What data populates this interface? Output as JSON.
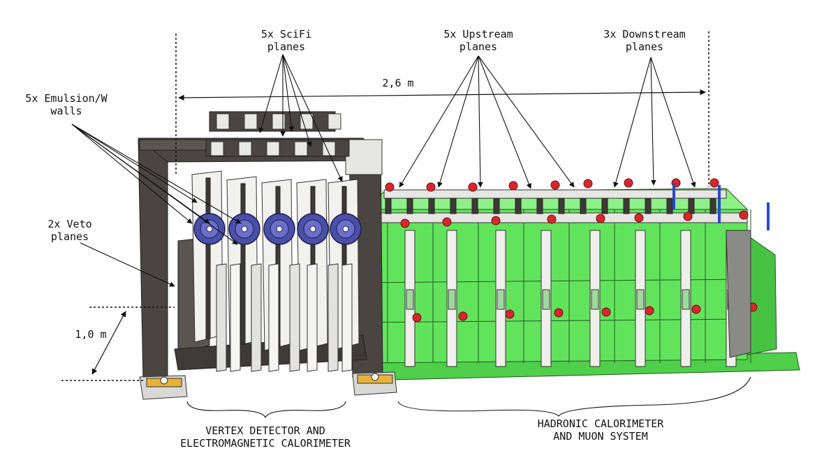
{
  "labels": {
    "scifi": [
      "5x SciFi",
      "planes"
    ],
    "upstream": [
      "5x Upstream",
      "planes"
    ],
    "downstream": [
      "3x Downstream",
      "planes"
    ],
    "emulsion": [
      "5x Emulsion/W",
      "walls"
    ],
    "veto": [
      "2x Veto",
      "planes"
    ],
    "vertex": [
      "VERTEX DETECTOR AND",
      "ELECTROMAGNETIC CALORIMETER"
    ],
    "hadronic": [
      "HADRONIC CALORIMETER",
      "AND MUON SYSTEM"
    ]
  },
  "dimensions": {
    "length": "2,6 m",
    "height": "1,0 m"
  },
  "colors": {
    "frame": "#4a4540",
    "hcal_green": "#5fe05a",
    "disk_blue": "#4a4fa8",
    "plane_white": "#f1f1ee",
    "bolt_red": "#d8262c",
    "base_yellow": "#e7b23b"
  }
}
